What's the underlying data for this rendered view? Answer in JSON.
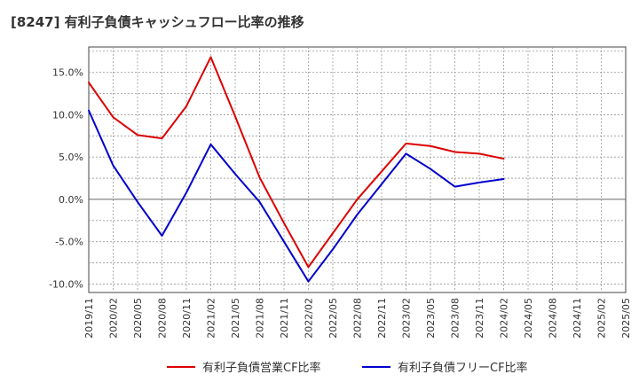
{
  "title": "[8247]  有利子負債キャッシュフロー比率の推移",
  "chart_data": {
    "type": "line",
    "title": "[8247]  有利子負債キャッシュフロー比率の推移",
    "xlabel": "",
    "ylabel": "",
    "categories": [
      "2019/11",
      "2020/02",
      "2020/05",
      "2020/08",
      "2020/11",
      "2021/02",
      "2021/05",
      "2021/08",
      "2021/11",
      "2022/02",
      "2022/05",
      "2022/08",
      "2022/11",
      "2023/02",
      "2023/05",
      "2023/08",
      "2023/11",
      "2024/02",
      "2024/05",
      "2024/08",
      "2024/11",
      "2025/02",
      "2025/05"
    ],
    "ylim": [
      -11,
      18
    ],
    "yticks": [
      -10,
      -5,
      0,
      5,
      10,
      15
    ],
    "ytick_labels": [
      "-10.0%",
      "-5.0%",
      "0.0%",
      "5.0%",
      "10.0%",
      "15.0%"
    ],
    "grid": true,
    "legend_position": "bottom",
    "series": [
      {
        "name": "有利子負債営業CF比率",
        "color": "#dd0000",
        "values": [
          13.8,
          9.7,
          7.6,
          7.2,
          11.0,
          16.8,
          9.8,
          2.6,
          -2.8,
          -8.0,
          -4.0,
          0.0,
          3.3,
          6.6,
          6.3,
          5.6,
          5.4,
          4.8,
          null,
          null,
          null,
          null,
          null
        ]
      },
      {
        "name": "有利子負債フリーCF比率",
        "color": "#0000cc",
        "values": [
          10.5,
          4.0,
          -0.3,
          -4.3,
          0.8,
          6.5,
          3.0,
          -0.3,
          -5.0,
          -9.7,
          -5.9,
          -1.8,
          1.8,
          5.4,
          3.6,
          1.5,
          2.0,
          2.4,
          null,
          null,
          null,
          null,
          null
        ]
      }
    ]
  }
}
